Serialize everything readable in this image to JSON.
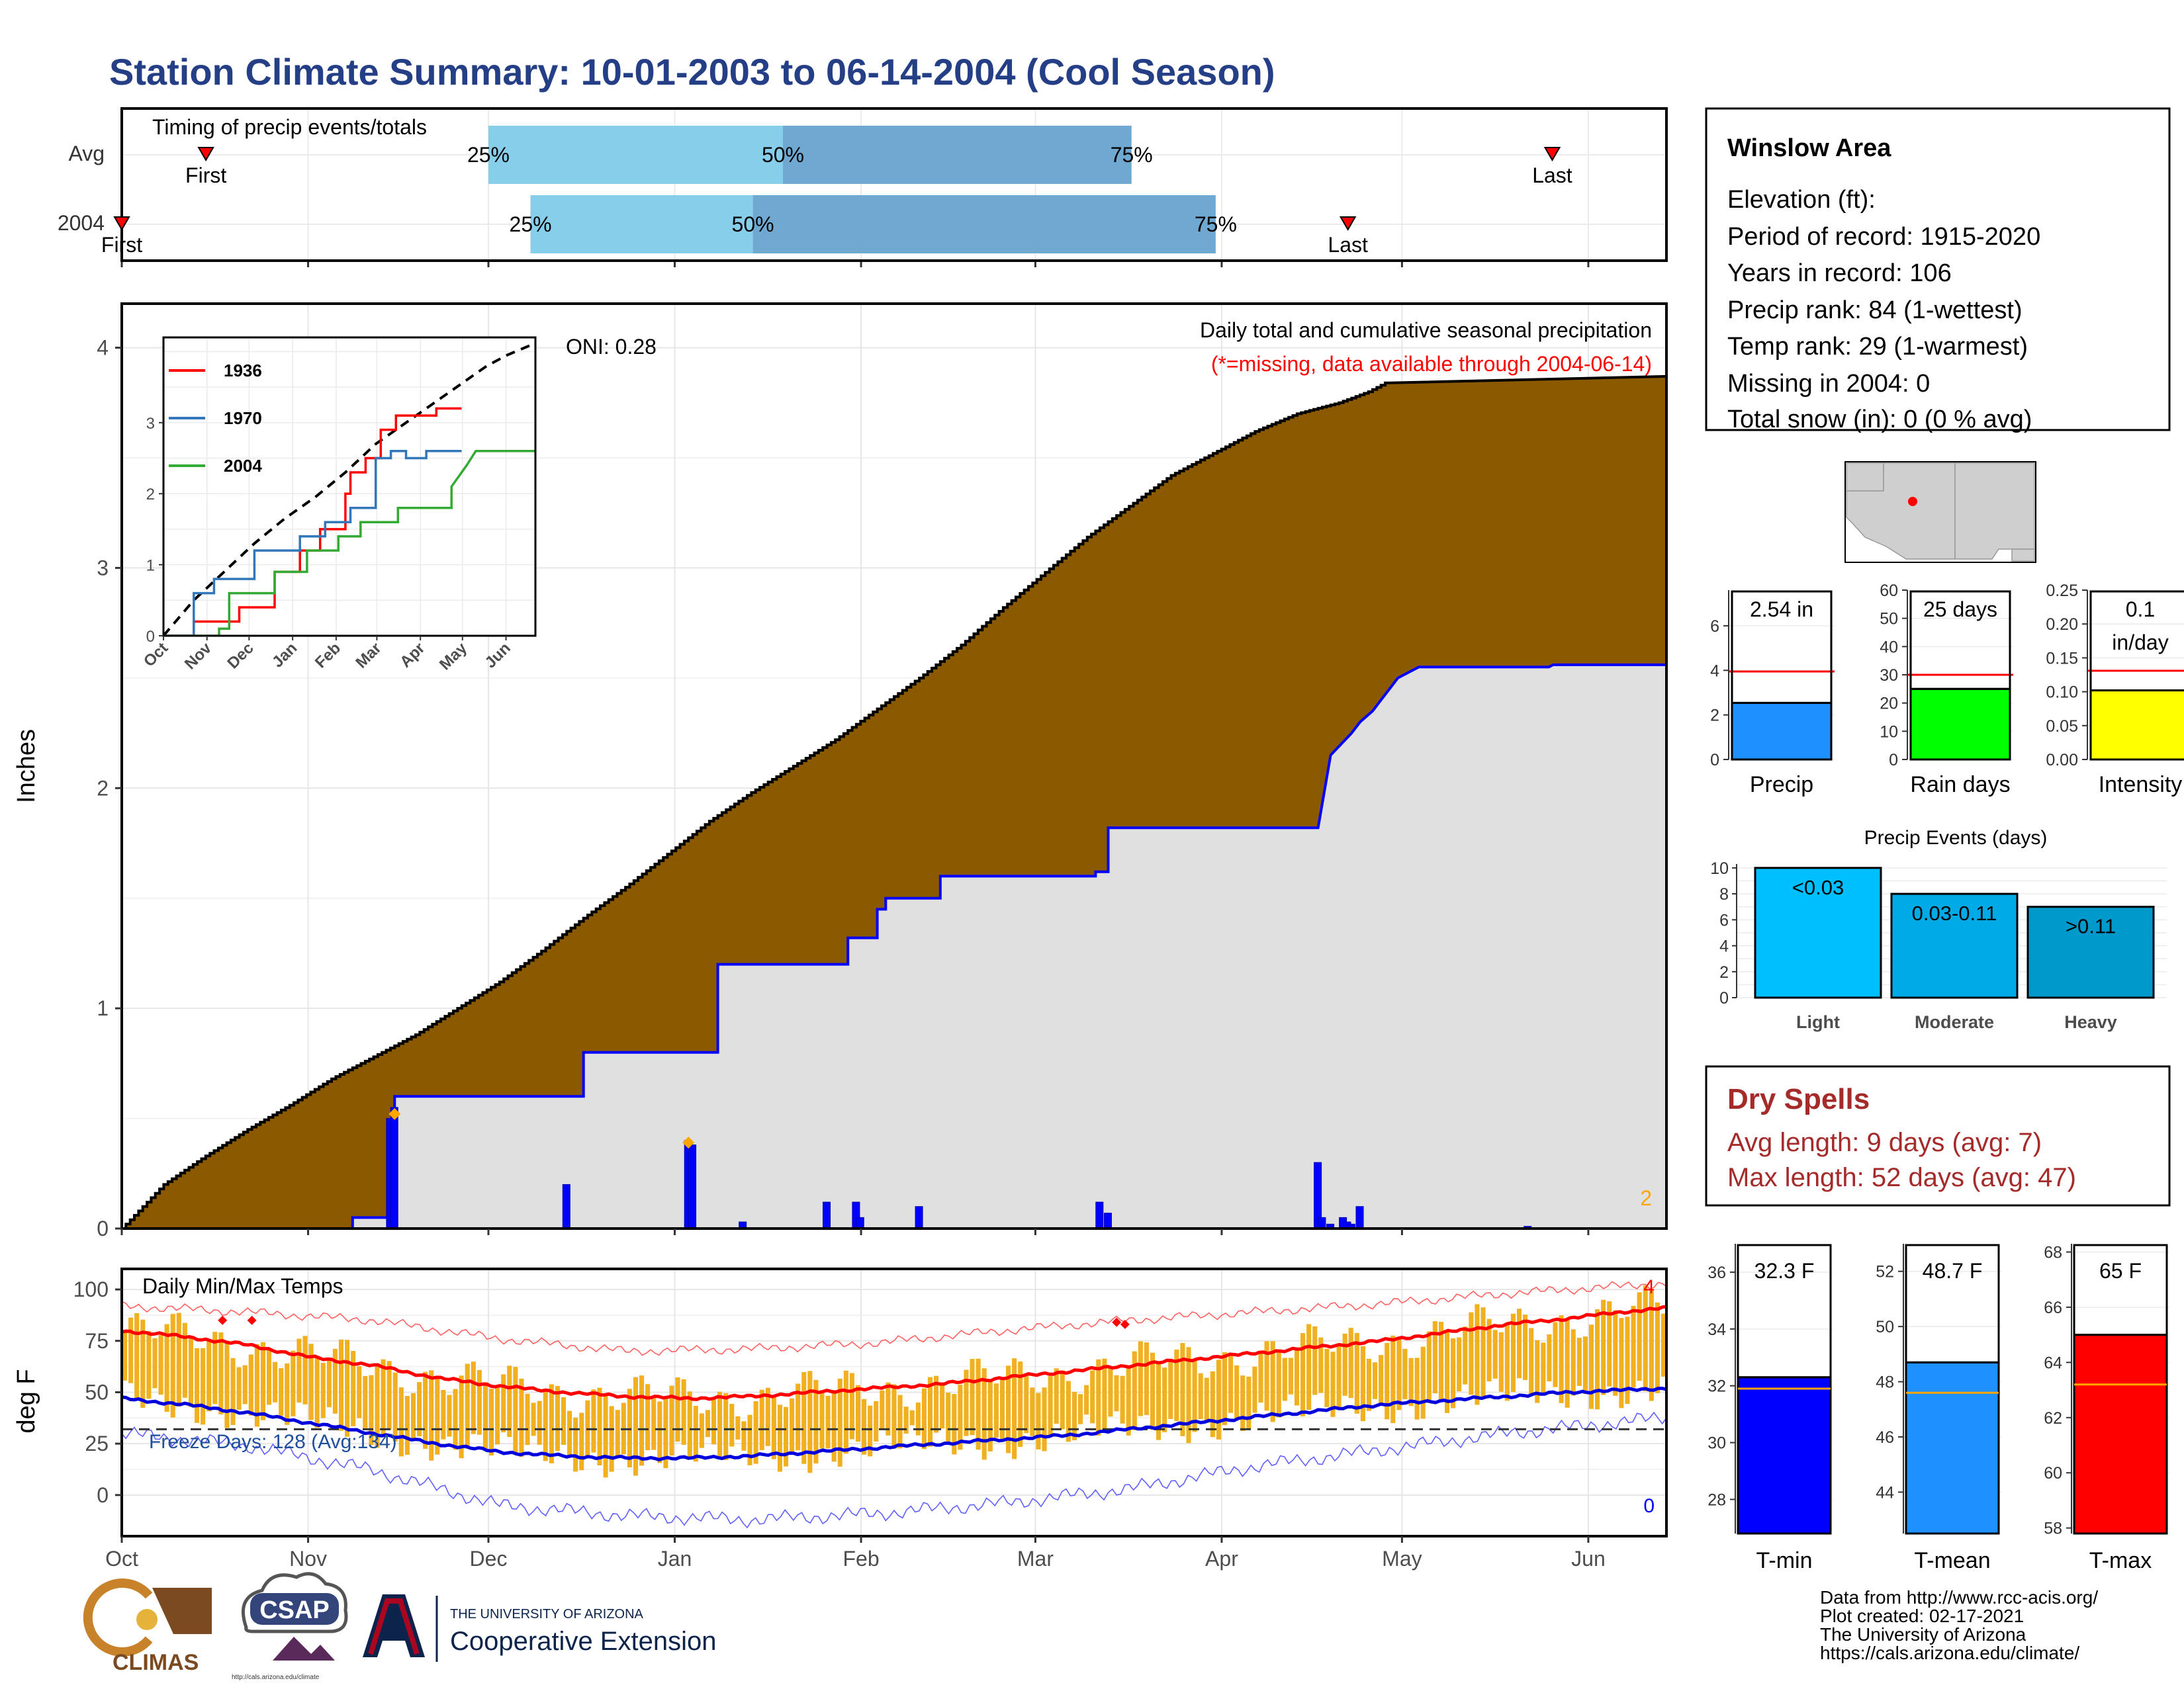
{
  "title": "Station Climate Summary: 10-01-2003 to 06-14-2004 (Cool Season)",
  "colors": {
    "title": "#253F86",
    "cum_avg_fill": "#8B5A00",
    "cum_year_fill": "#E0E0E0",
    "year_line": "#0000FF",
    "timing_q1": "#87CEEB",
    "timing_q2": "#6FA8D0",
    "marker_red": "#FF0000",
    "record_marker": "#FFA500",
    "temp_bar": "#F0B020",
    "tmax_line": "#FF0000",
    "tmin_line": "#0000FF",
    "dry_spells": "#A52A2A"
  },
  "timing": {
    "title": "Timing of precip events/totals",
    "rows": [
      {
        "label": "Avg",
        "first_label": "First",
        "last_label": "Last",
        "first": "2003-10-15",
        "q25": "2003-12-01",
        "q50": "2004-01-19",
        "q75": "2004-03-17",
        "last": "2004-05-26",
        "q25_label": "25%",
        "q50_label": "50%",
        "q75_label": "75%"
      },
      {
        "label": "2004",
        "first_label": "First",
        "last_label": "Last",
        "first": "2003-10-01",
        "q25": "2003-12-08",
        "q50": "2004-01-14",
        "q75": "2004-03-31",
        "last": "2004-04-22",
        "q25_label": "25%",
        "q50_label": "50%",
        "q75_label": "75%"
      }
    ]
  },
  "precip_panel": {
    "ylabel": "Inches",
    "header": "Daily total and cumulative seasonal precipitation",
    "missing_note": "(*=missing, data available through 2004-06-14)",
    "oni_label": "ONI: 0.28",
    "record_count": "2",
    "yticks": [
      "0",
      "1",
      "2",
      "3",
      "4"
    ]
  },
  "inset": {
    "legend": [
      "1936",
      "1970",
      "2004"
    ],
    "legend_colors": [
      "#FF0000",
      "#3377BB",
      "#33AA33"
    ],
    "xticks": [
      "Oct",
      "Nov",
      "Dec",
      "Jan",
      "Feb",
      "Mar",
      "Apr",
      "May",
      "Jun"
    ],
    "yticks": [
      "0",
      "1",
      "2",
      "3"
    ]
  },
  "temp_panel": {
    "ylabel": "deg F",
    "header": "Daily Min/Max Temps",
    "freeze_label": "Freeze Days: 128 (Avg:134)",
    "record_high_count": "4",
    "record_low_count": "0",
    "yticks": [
      "0",
      "25",
      "50",
      "75",
      "100"
    ]
  },
  "x_axis": {
    "months": [
      "Oct",
      "Nov",
      "Dec",
      "Jan",
      "Feb",
      "Mar",
      "Apr",
      "May",
      "Jun"
    ]
  },
  "station_box": {
    "name": "Winslow Area",
    "lines": [
      "Elevation (ft):",
      "Period of record: 1915-2020",
      "Years in record: 106",
      "Precip rank: 84 (1-wettest)",
      "Temp rank: 29 (1-warmest)",
      "Missing in 2004: 0",
      "Total snow (in): 0 (0 % avg)"
    ]
  },
  "mini_bars": [
    {
      "label": "Precip",
      "value_label": "2.54 in",
      "value": 2.54,
      "avg": 3.95,
      "ymax": 7.6,
      "ticks": [
        "0",
        "2",
        "4",
        "6"
      ],
      "tick_values": [
        0,
        2,
        4,
        6
      ],
      "color": "#1E90FF"
    },
    {
      "label": "Rain days",
      "value_label": "25 days",
      "value": 25,
      "avg": 30,
      "ymax": 60,
      "ticks": [
        "0",
        "10",
        "20",
        "30",
        "40",
        "50",
        "60"
      ],
      "tick_values": [
        0,
        10,
        20,
        30,
        40,
        50,
        60
      ],
      "color": "#00FF00"
    },
    {
      "label": "Intensity",
      "value_label": "0.1",
      "value_label2": "in/day",
      "value": 0.102,
      "avg": 0.131,
      "ymax": 0.25,
      "ticks": [
        "0.00",
        "0.05",
        "0.10",
        "0.15",
        "0.20",
        "0.25"
      ],
      "tick_values": [
        0,
        0.05,
        0.1,
        0.15,
        0.2,
        0.25
      ],
      "color": "#FFFF00"
    }
  ],
  "events": {
    "title": "Precip Events (days)",
    "categories": [
      "Light",
      "Moderate",
      "Heavy"
    ],
    "value_labels": [
      "<0.03",
      "0.03-0.11",
      ">0.11"
    ],
    "values": [
      10,
      8,
      7
    ],
    "colors": [
      "#00BFFF",
      "#00AAE6",
      "#0099CC"
    ],
    "yticks": [
      "0",
      "2",
      "4",
      "6",
      "8",
      "10"
    ]
  },
  "dry_spells": {
    "title": "Dry Spells",
    "avg_line": "Avg length: 9 days (avg: 7)",
    "max_line": "Max length: 52 days (avg: 47)"
  },
  "temp_bars": [
    {
      "label": "T-min",
      "value_label": "32.3 F",
      "value": 32.3,
      "avg": 31.9,
      "ymin": 26.8,
      "ymax": 37,
      "ticks": [
        "28",
        "30",
        "32",
        "34",
        "36"
      ],
      "tick_values": [
        28,
        30,
        32,
        34,
        36
      ],
      "color": "#0000FF"
    },
    {
      "label": "T-mean",
      "value_label": "48.7 F",
      "value": 48.7,
      "avg": 47.6,
      "ymin": 42.5,
      "ymax": 53,
      "ticks": [
        "44",
        "46",
        "48",
        "50",
        "52"
      ],
      "tick_values": [
        44,
        46,
        48,
        50,
        52
      ],
      "color": "#1E90FF"
    },
    {
      "label": "T-max",
      "value_label": "65 F",
      "value": 65.0,
      "avg": 63.2,
      "ymin": 57.8,
      "ymax": 68.3,
      "ticks": [
        "58",
        "60",
        "62",
        "64",
        "66",
        "68"
      ],
      "tick_values": [
        58,
        60,
        62,
        64,
        66,
        68
      ],
      "color": "#FF0000"
    }
  ],
  "footer": {
    "logos": [
      "CLIMAS",
      "CSAP",
      "THE UNIVERSITY OF ARIZONA",
      "Cooperative Extension",
      "http://cals.arizona.edu/climate"
    ],
    "credits": [
      "Data from http://www.rcc-acis.org/",
      "Plot created: 02-17-2021",
      "The University of Arizona",
      "https://cals.arizona.edu/climate/"
    ]
  },
  "chart_data": {
    "type": "area",
    "start_date": "2003-10-01",
    "end_date": "2004-06-14",
    "ylim": [
      0,
      4.2
    ],
    "avg_cumulative": [
      [
        0,
        0
      ],
      [
        5,
        0.1
      ],
      [
        10,
        0.2
      ],
      [
        20,
        0.33
      ],
      [
        30,
        0.45
      ],
      [
        40,
        0.56
      ],
      [
        50,
        0.68
      ],
      [
        60,
        0.78
      ],
      [
        70,
        0.88
      ],
      [
        80,
        1.0
      ],
      [
        90,
        1.12
      ],
      [
        100,
        1.26
      ],
      [
        110,
        1.41
      ],
      [
        120,
        1.55
      ],
      [
        130,
        1.7
      ],
      [
        140,
        1.85
      ],
      [
        150,
        1.98
      ],
      [
        160,
        2.1
      ],
      [
        170,
        2.22
      ],
      [
        180,
        2.36
      ],
      [
        190,
        2.5
      ],
      [
        200,
        2.65
      ],
      [
        210,
        2.82
      ],
      [
        220,
        2.98
      ],
      [
        230,
        3.14
      ],
      [
        240,
        3.28
      ],
      [
        250,
        3.42
      ],
      [
        260,
        3.52
      ],
      [
        270,
        3.62
      ],
      [
        280,
        3.7
      ],
      [
        290,
        3.75
      ],
      [
        297,
        3.8
      ],
      [
        302,
        3.85
      ]
    ],
    "year_cumulative": [
      [
        0,
        0
      ],
      [
        55,
        0
      ],
      [
        55,
        0.05
      ],
      [
        65,
        0.05
      ],
      [
        65,
        0.6
      ],
      [
        110,
        0.6
      ],
      [
        110,
        0.8
      ],
      [
        142,
        0.8
      ],
      [
        142,
        1.2
      ],
      [
        173,
        1.2
      ],
      [
        173,
        1.32
      ],
      [
        180,
        1.32
      ],
      [
        180,
        1.45
      ],
      [
        182,
        1.45
      ],
      [
        182,
        1.5
      ],
      [
        195,
        1.5
      ],
      [
        195,
        1.6
      ],
      [
        232,
        1.6
      ],
      [
        232,
        1.62
      ],
      [
        235,
        1.62
      ],
      [
        235,
        1.82
      ],
      [
        285,
        1.82
      ],
      [
        285,
        1.82
      ],
      [
        288,
        2.15
      ],
      [
        293,
        2.25
      ],
      [
        295,
        2.3
      ],
      [
        298,
        2.35
      ],
      [
        300,
        2.4
      ],
      [
        302,
        2.45
      ],
      [
        304,
        2.5
      ],
      [
        309,
        2.55
      ],
      [
        340,
        2.55
      ],
      [
        341,
        2.56
      ],
      [
        368,
        2.56
      ],
      [
        400,
        2.56
      ]
    ],
    "daily_precip": [
      [
        64,
        0.5
      ],
      [
        65,
        0.55
      ],
      [
        106,
        0.2
      ],
      [
        135,
        0.4
      ],
      [
        136,
        0.38
      ],
      [
        148,
        0.03
      ],
      [
        168,
        0.12
      ],
      [
        175,
        0.12
      ],
      [
        176,
        0.05
      ],
      [
        190,
        0.1
      ],
      [
        233,
        0.12
      ],
      [
        235,
        0.07
      ],
      [
        285,
        0.3
      ],
      [
        286,
        0.05
      ],
      [
        288,
        0.02
      ],
      [
        291,
        0.05
      ],
      [
        292,
        0.03
      ],
      [
        293,
        0.02
      ],
      [
        295,
        0.1
      ],
      [
        335,
        0.01
      ]
    ],
    "record_precip_days": [
      [
        65,
        0.52
      ],
      [
        135,
        0.39
      ]
    ],
    "inset_series": [
      {
        "name": "1936",
        "points": [
          [
            0,
            0
          ],
          [
            30,
            0
          ],
          [
            30,
            0.2
          ],
          [
            75,
            0.2
          ],
          [
            75,
            0.4
          ],
          [
            110,
            0.4
          ],
          [
            110,
            0.9
          ],
          [
            135,
            0.9
          ],
          [
            135,
            1.2
          ],
          [
            155,
            1.2
          ],
          [
            155,
            1.5
          ],
          [
            180,
            1.5
          ],
          [
            180,
            2.0
          ],
          [
            185,
            2.0
          ],
          [
            185,
            2.3
          ],
          [
            200,
            2.3
          ],
          [
            200,
            2.5
          ],
          [
            215,
            2.5
          ],
          [
            215,
            2.9
          ],
          [
            230,
            2.9
          ],
          [
            230,
            3.1
          ],
          [
            270,
            3.1
          ],
          [
            270,
            3.2
          ],
          [
            295,
            3.2
          ]
        ]
      },
      {
        "name": "1970",
        "points": [
          [
            0,
            0
          ],
          [
            30,
            0
          ],
          [
            30,
            0.6
          ],
          [
            50,
            0.6
          ],
          [
            50,
            0.8
          ],
          [
            90,
            0.8
          ],
          [
            90,
            1.2
          ],
          [
            135,
            1.2
          ],
          [
            135,
            1.4
          ],
          [
            160,
            1.4
          ],
          [
            160,
            1.6
          ],
          [
            185,
            1.6
          ],
          [
            185,
            1.8
          ],
          [
            210,
            1.8
          ],
          [
            210,
            2.5
          ],
          [
            225,
            2.5
          ],
          [
            225,
            2.6
          ],
          [
            240,
            2.6
          ],
          [
            240,
            2.5
          ],
          [
            260,
            2.5
          ],
          [
            260,
            2.6
          ],
          [
            295,
            2.6
          ]
        ]
      },
      {
        "name": "2004",
        "points": [
          [
            0,
            0
          ],
          [
            55,
            0
          ],
          [
            55,
            0.1
          ],
          [
            65,
            0.1
          ],
          [
            65,
            0.6
          ],
          [
            110,
            0.6
          ],
          [
            110,
            0.9
          ],
          [
            142,
            0.9
          ],
          [
            142,
            1.2
          ],
          [
            173,
            1.2
          ],
          [
            173,
            1.4
          ],
          [
            195,
            1.4
          ],
          [
            195,
            1.6
          ],
          [
            232,
            1.6
          ],
          [
            232,
            1.8
          ],
          [
            285,
            1.8
          ],
          [
            285,
            2.1
          ],
          [
            300,
            2.4
          ],
          [
            309,
            2.6
          ],
          [
            368,
            2.6
          ]
        ]
      }
    ],
    "inset_avg": [
      [
        0,
        0
      ],
      [
        30,
        0.5
      ],
      [
        60,
        0.9
      ],
      [
        90,
        1.3
      ],
      [
        120,
        1.65
      ],
      [
        150,
        1.95
      ],
      [
        180,
        2.3
      ],
      [
        210,
        2.7
      ],
      [
        240,
        3.0
      ],
      [
        260,
        3.2
      ],
      [
        280,
        3.4
      ],
      [
        300,
        3.6
      ],
      [
        320,
        3.8
      ],
      [
        340,
        3.95
      ],
      [
        365,
        4.1
      ]
    ],
    "temp": {
      "tmax_avg": [
        [
          0,
          80
        ],
        [
          15,
          77
        ],
        [
          30,
          73
        ],
        [
          45,
          67
        ],
        [
          60,
          63
        ],
        [
          75,
          57
        ],
        [
          90,
          53
        ],
        [
          105,
          50
        ],
        [
          120,
          48
        ],
        [
          135,
          47
        ],
        [
          150,
          48
        ],
        [
          165,
          50
        ],
        [
          180,
          52
        ],
        [
          195,
          54
        ],
        [
          210,
          57
        ],
        [
          225,
          60
        ],
        [
          240,
          63
        ],
        [
          255,
          66
        ],
        [
          270,
          69
        ],
        [
          285,
          72
        ],
        [
          300,
          75
        ],
        [
          315,
          79
        ],
        [
          330,
          83
        ],
        [
          345,
          86
        ],
        [
          357,
          89
        ],
        [
          368,
          91
        ]
      ],
      "tmin_avg": [
        [
          0,
          47
        ],
        [
          15,
          44
        ],
        [
          30,
          40
        ],
        [
          45,
          35
        ],
        [
          60,
          30
        ],
        [
          75,
          25
        ],
        [
          90,
          21
        ],
        [
          105,
          19
        ],
        [
          120,
          18
        ],
        [
          135,
          18
        ],
        [
          150,
          19
        ],
        [
          165,
          21
        ],
        [
          180,
          23
        ],
        [
          195,
          25
        ],
        [
          210,
          27
        ],
        [
          225,
          29
        ],
        [
          240,
          32
        ],
        [
          255,
          35
        ],
        [
          270,
          38
        ],
        [
          285,
          41
        ],
        [
          300,
          44
        ],
        [
          315,
          46
        ],
        [
          330,
          48
        ],
        [
          345,
          50
        ],
        [
          357,
          51
        ],
        [
          368,
          52
        ]
      ],
      "record_high": [
        [
          0,
          92
        ],
        [
          30,
          89
        ],
        [
          60,
          85
        ],
        [
          90,
          76
        ],
        [
          120,
          70
        ],
        [
          150,
          71
        ],
        [
          180,
          74
        ],
        [
          210,
          80
        ],
        [
          240,
          85
        ],
        [
          270,
          89
        ],
        [
          300,
          93
        ],
        [
          330,
          98
        ],
        [
          360,
          102
        ],
        [
          368,
          103
        ]
      ],
      "record_low": [
        [
          0,
          30
        ],
        [
          30,
          24
        ],
        [
          60,
          12
        ],
        [
          90,
          -5
        ],
        [
          120,
          -10
        ],
        [
          150,
          -12
        ],
        [
          180,
          -9
        ],
        [
          210,
          -4
        ],
        [
          240,
          3
        ],
        [
          270,
          14
        ],
        [
          300,
          22
        ],
        [
          330,
          30
        ],
        [
          360,
          36
        ],
        [
          368,
          38
        ]
      ],
      "record_high_days": [
        [
          24,
          85
        ],
        [
          31,
          85
        ],
        [
          237,
          84
        ],
        [
          239,
          83
        ]
      ],
      "freeze_line": 32,
      "ylim": [
        -20,
        110
      ]
    }
  }
}
